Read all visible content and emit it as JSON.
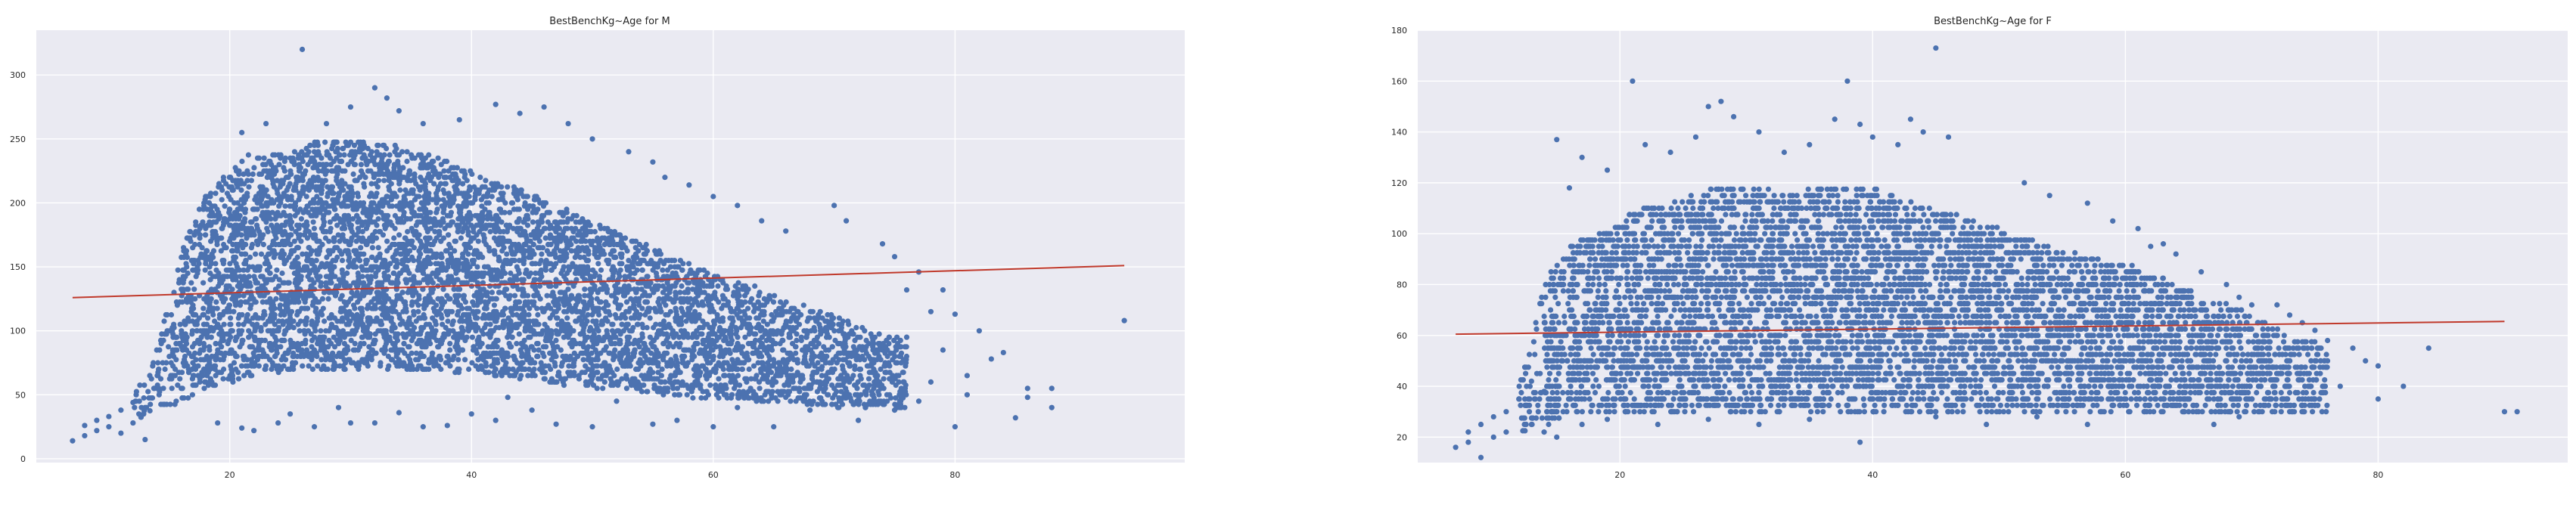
{
  "chart_data": [
    {
      "type": "scatter",
      "title": "BestBenchKg~Age for M",
      "xlabel": "",
      "ylabel": "",
      "xlim": [
        4,
        99
      ],
      "ylim": [
        -3,
        335
      ],
      "xticks": [
        20,
        40,
        60,
        80
      ],
      "yticks": [
        0,
        50,
        100,
        150,
        200,
        250,
        300
      ],
      "grid": true,
      "colors": {
        "points": "#4c72b0",
        "fit_line": "#c0392b",
        "background": "#eaeaf2"
      },
      "density_envelope": [
        [
          12,
          30,
          48
        ],
        [
          14,
          35,
          85
        ],
        [
          16,
          45,
          165
        ],
        [
          18,
          55,
          205
        ],
        [
          20,
          60,
          225
        ],
        [
          22,
          65,
          240
        ],
        [
          24,
          68,
          240
        ],
        [
          26,
          70,
          245
        ],
        [
          28,
          70,
          248
        ],
        [
          30,
          70,
          250
        ],
        [
          32,
          70,
          248
        ],
        [
          34,
          70,
          245
        ],
        [
          36,
          68,
          238
        ],
        [
          38,
          68,
          232
        ],
        [
          40,
          65,
          225
        ],
        [
          42,
          65,
          218
        ],
        [
          44,
          62,
          210
        ],
        [
          46,
          60,
          202
        ],
        [
          48,
          58,
          195
        ],
        [
          50,
          56,
          185
        ],
        [
          52,
          54,
          178
        ],
        [
          54,
          52,
          170
        ],
        [
          56,
          50,
          160
        ],
        [
          58,
          48,
          152
        ],
        [
          60,
          48,
          145
        ],
        [
          62,
          46,
          140
        ],
        [
          64,
          45,
          132
        ],
        [
          66,
          44,
          125
        ],
        [
          68,
          42,
          118
        ],
        [
          70,
          40,
          112
        ],
        [
          72,
          40,
          105
        ],
        [
          74,
          40,
          98
        ],
        [
          76,
          40,
          92
        ]
      ],
      "points": [
        [
          7,
          14
        ],
        [
          8,
          18
        ],
        [
          8,
          26
        ],
        [
          9,
          22
        ],
        [
          9,
          30
        ],
        [
          10,
          25
        ],
        [
          10,
          33
        ],
        [
          11,
          20
        ],
        [
          11,
          38
        ],
        [
          12,
          28
        ],
        [
          12,
          44
        ],
        [
          13,
          15
        ],
        [
          13,
          40
        ],
        [
          14,
          55
        ],
        [
          15,
          80
        ],
        [
          26,
          320
        ],
        [
          32,
          290
        ],
        [
          33,
          282
        ],
        [
          30,
          275
        ],
        [
          34,
          272
        ],
        [
          28,
          262
        ],
        [
          23,
          262
        ],
        [
          21,
          255
        ],
        [
          36,
          262
        ],
        [
          42,
          277
        ],
        [
          44,
          270
        ],
        [
          46,
          275
        ],
        [
          39,
          265
        ],
        [
          48,
          262
        ],
        [
          50,
          250
        ],
        [
          53,
          240
        ],
        [
          55,
          232
        ],
        [
          56,
          220
        ],
        [
          58,
          214
        ],
        [
          60,
          205
        ],
        [
          62,
          198
        ],
        [
          64,
          186
        ],
        [
          66,
          178
        ],
        [
          70,
          198
        ],
        [
          71,
          186
        ],
        [
          74,
          168
        ],
        [
          75,
          158
        ],
        [
          77,
          146
        ],
        [
          76,
          132
        ],
        [
          79,
          132
        ],
        [
          80,
          113
        ],
        [
          82,
          100
        ],
        [
          84,
          83
        ],
        [
          86,
          55
        ],
        [
          88,
          40
        ],
        [
          94,
          108
        ],
        [
          78,
          60
        ],
        [
          80,
          25
        ],
        [
          81,
          50
        ],
        [
          83,
          78
        ],
        [
          72,
          30
        ],
        [
          75,
          38
        ],
        [
          77,
          45
        ],
        [
          79,
          85
        ],
        [
          70,
          55
        ],
        [
          68,
          38
        ],
        [
          65,
          25
        ],
        [
          60,
          25
        ],
        [
          55,
          27
        ],
        [
          57,
          30
        ],
        [
          50,
          25
        ],
        [
          47,
          27
        ],
        [
          45,
          38
        ],
        [
          40,
          35
        ],
        [
          38,
          26
        ],
        [
          36,
          25
        ],
        [
          32,
          28
        ],
        [
          30,
          28
        ],
        [
          27,
          25
        ],
        [
          24,
          28
        ],
        [
          21,
          24
        ],
        [
          22,
          22
        ],
        [
          19,
          28
        ],
        [
          25,
          35
        ],
        [
          29,
          40
        ],
        [
          34,
          36
        ],
        [
          42,
          30
        ],
        [
          43,
          48
        ],
        [
          52,
          45
        ],
        [
          62,
          40
        ],
        [
          66,
          48
        ],
        [
          69,
          72
        ],
        [
          73,
          78
        ],
        [
          76,
          95
        ],
        [
          78,
          115
        ],
        [
          81,
          65
        ],
        [
          85,
          32
        ],
        [
          86,
          48
        ],
        [
          88,
          55
        ]
      ],
      "fit_line": {
        "x": [
          7,
          94
        ],
        "y": [
          126,
          151
        ]
      }
    },
    {
      "type": "scatter",
      "title": "BestBenchKg~Age for F",
      "xlabel": "",
      "ylabel": "",
      "xlim": [
        4,
        95
      ],
      "ylim": [
        10,
        180
      ],
      "xticks": [
        20,
        40,
        60,
        80
      ],
      "yticks": [
        20,
        40,
        60,
        80,
        100,
        120,
        140,
        160,
        180
      ],
      "grid": true,
      "colors": {
        "points": "#4c72b0",
        "fit_line": "#c0392b",
        "background": "#eaeaf2"
      },
      "density_envelope": [
        [
          12,
          20,
          40
        ],
        [
          14,
          25,
          80
        ],
        [
          16,
          28,
          95
        ],
        [
          18,
          30,
          100
        ],
        [
          20,
          30,
          105
        ],
        [
          22,
          30,
          110
        ],
        [
          24,
          30,
          112
        ],
        [
          26,
          30,
          115
        ],
        [
          28,
          30,
          118
        ],
        [
          30,
          30,
          118
        ],
        [
          32,
          30,
          118
        ],
        [
          34,
          30,
          118
        ],
        [
          36,
          30,
          118
        ],
        [
          38,
          30,
          118
        ],
        [
          40,
          30,
          118
        ],
        [
          42,
          30,
          115
        ],
        [
          44,
          30,
          112
        ],
        [
          46,
          30,
          108
        ],
        [
          48,
          30,
          105
        ],
        [
          50,
          30,
          102
        ],
        [
          52,
          30,
          98
        ],
        [
          54,
          30,
          95
        ],
        [
          56,
          30,
          92
        ],
        [
          58,
          30,
          90
        ],
        [
          60,
          30,
          88
        ],
        [
          62,
          30,
          85
        ],
        [
          64,
          30,
          80
        ],
        [
          66,
          30,
          75
        ],
        [
          68,
          30,
          72
        ],
        [
          70,
          30,
          68
        ],
        [
          72,
          30,
          62
        ],
        [
          74,
          30,
          58
        ],
        [
          76,
          30,
          55
        ]
      ],
      "points": [
        [
          7,
          16
        ],
        [
          8,
          18
        ],
        [
          8,
          22
        ],
        [
          9,
          12
        ],
        [
          9,
          25
        ],
        [
          10,
          20
        ],
        [
          10,
          28
        ],
        [
          11,
          30
        ],
        [
          11,
          22
        ],
        [
          12,
          35
        ],
        [
          13,
          25
        ],
        [
          13,
          42
        ],
        [
          14,
          38
        ],
        [
          45,
          173
        ],
        [
          21,
          160
        ],
        [
          38,
          160
        ],
        [
          28,
          152
        ],
        [
          27,
          150
        ],
        [
          29,
          146
        ],
        [
          31,
          140
        ],
        [
          26,
          138
        ],
        [
          37,
          145
        ],
        [
          39,
          143
        ],
        [
          43,
          145
        ],
        [
          44,
          140
        ],
        [
          46,
          138
        ],
        [
          42,
          135
        ],
        [
          40,
          138
        ],
        [
          35,
          135
        ],
        [
          33,
          132
        ],
        [
          22,
          135
        ],
        [
          24,
          132
        ],
        [
          19,
          125
        ],
        [
          17,
          130
        ],
        [
          15,
          137
        ],
        [
          16,
          118
        ],
        [
          52,
          120
        ],
        [
          54,
          115
        ],
        [
          57,
          112
        ],
        [
          59,
          105
        ],
        [
          61,
          102
        ],
        [
          63,
          96
        ],
        [
          64,
          92
        ],
        [
          62,
          95
        ],
        [
          66,
          85
        ],
        [
          68,
          80
        ],
        [
          69,
          75
        ],
        [
          70,
          72
        ],
        [
          72,
          72
        ],
        [
          73,
          68
        ],
        [
          74,
          65
        ],
        [
          75,
          62
        ],
        [
          76,
          58
        ],
        [
          78,
          55
        ],
        [
          79,
          50
        ],
        [
          80,
          48
        ],
        [
          84,
          55
        ],
        [
          90,
          30
        ],
        [
          91,
          30
        ],
        [
          80,
          35
        ],
        [
          82,
          40
        ],
        [
          77,
          40
        ],
        [
          75,
          35
        ],
        [
          73,
          30
        ],
        [
          71,
          35
        ],
        [
          69,
          28
        ],
        [
          67,
          25
        ],
        [
          65,
          30
        ],
        [
          63,
          35
        ],
        [
          61,
          40
        ],
        [
          57,
          25
        ],
        [
          53,
          28
        ],
        [
          49,
          25
        ],
        [
          45,
          28
        ],
        [
          39,
          18
        ],
        [
          35,
          27
        ],
        [
          31,
          25
        ],
        [
          27,
          27
        ],
        [
          23,
          25
        ],
        [
          19,
          27
        ],
        [
          17,
          25
        ],
        [
          15,
          20
        ],
        [
          14,
          22
        ]
      ],
      "fit_line": {
        "x": [
          7,
          90
        ],
        "y": [
          60.5,
          65.5
        ]
      }
    }
  ]
}
